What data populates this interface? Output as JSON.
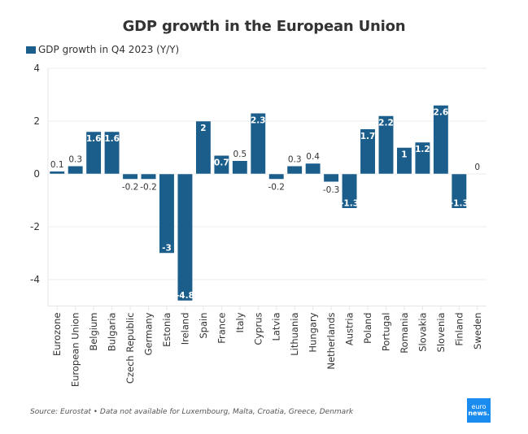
{
  "chart_data": {
    "type": "bar",
    "title": "GDP growth in the European Union",
    "legend": {
      "label": "GDP growth in Q4 2023 (Y/Y)",
      "position": "top-left"
    },
    "xlabel": "",
    "ylabel": "",
    "ylim": [
      -5,
      4
    ],
    "yticks": [
      4,
      2,
      0,
      -2,
      -4
    ],
    "grid": true,
    "bar_color": "#1b5e8c",
    "categories": [
      "Eurozone",
      "European Union",
      "Belgium",
      "Bulgaria",
      "Czech Republic",
      "Germany",
      "Estonia",
      "Ireland",
      "Spain",
      "France",
      "Italy",
      "Cyprus",
      "Latvia",
      "Lithuania",
      "Hungary",
      "Netherlands",
      "Austria",
      "Poland",
      "Portugal",
      "Romania",
      "Slovakia",
      "Slovenia",
      "Finland",
      "Sweden"
    ],
    "series": [
      {
        "name": "GDP growth in Q4 2023 (Y/Y)",
        "values": [
          0.1,
          0.3,
          1.6,
          1.6,
          -0.2,
          -0.2,
          -3,
          -4.8,
          2,
          0.7,
          0.5,
          2.3,
          -0.2,
          0.3,
          0.4,
          -0.3,
          -1.3,
          1.7,
          2.2,
          1,
          1.2,
          2.6,
          -1.3,
          0
        ]
      }
    ],
    "source": "Source: Eurostat • Data not available for Luxembourg, Malta, Croatia, Greece, Denmark"
  },
  "branding": {
    "logo_line1": "euro",
    "logo_line2": "news."
  }
}
